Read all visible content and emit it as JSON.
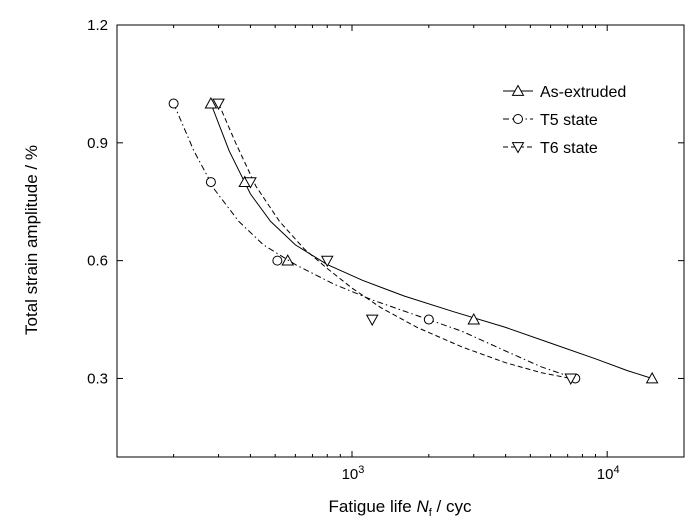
{
  "chart_data": {
    "type": "scatter",
    "xscale": "log",
    "xlim": [
      120,
      20000
    ],
    "ylim": [
      0.1,
      1.2
    ],
    "ylabel": "Total strain amplitude / %",
    "xlabel": {
      "prefix": "Fatigue life ",
      "italic": "N",
      "subscript": "f",
      "suffix": " / cyc"
    },
    "yticks": [
      0.3,
      0.6,
      0.9,
      1.2
    ],
    "ytick_labels": [
      "0.3",
      "0.6",
      "0.9",
      "1.2"
    ],
    "xticks": [
      1000,
      10000
    ],
    "xtick_labels": [
      {
        "base": "10",
        "exp": "3"
      },
      {
        "base": "10",
        "exp": "4"
      }
    ],
    "grid": false,
    "legend_position": "top-right",
    "series": [
      {
        "name": "As-extruded",
        "marker": "triangle-up",
        "line_style": "solid",
        "points": [
          [
            280,
            1.0
          ],
          [
            380,
            0.8
          ],
          [
            560,
            0.6
          ],
          [
            3000,
            0.45
          ],
          [
            15000,
            0.3
          ]
        ],
        "fit": [
          [
            280,
            1.0
          ],
          [
            330,
            0.88
          ],
          [
            400,
            0.77
          ],
          [
            480,
            0.7
          ],
          [
            600,
            0.64
          ],
          [
            800,
            0.59
          ],
          [
            1100,
            0.55
          ],
          [
            1600,
            0.51
          ],
          [
            2500,
            0.47
          ],
          [
            4000,
            0.43
          ],
          [
            6000,
            0.39
          ],
          [
            9000,
            0.35
          ],
          [
            12000,
            0.32
          ],
          [
            15000,
            0.3
          ]
        ]
      },
      {
        "name": "T5 state",
        "marker": "circle",
        "line_style": "dashdot",
        "points": [
          [
            200,
            1.0
          ],
          [
            280,
            0.8
          ],
          [
            510,
            0.6
          ],
          [
            2000,
            0.45
          ],
          [
            7500,
            0.3
          ]
        ],
        "fit": [
          [
            200,
            1.0
          ],
          [
            240,
            0.88
          ],
          [
            290,
            0.78
          ],
          [
            360,
            0.7
          ],
          [
            450,
            0.64
          ],
          [
            600,
            0.59
          ],
          [
            850,
            0.54
          ],
          [
            1200,
            0.5
          ],
          [
            1800,
            0.46
          ],
          [
            2700,
            0.42
          ],
          [
            4000,
            0.37
          ],
          [
            5500,
            0.33
          ],
          [
            7500,
            0.3
          ]
        ]
      },
      {
        "name": "T6 state",
        "marker": "triangle-down",
        "line_style": "dashed",
        "points": [
          [
            300,
            1.0
          ],
          [
            400,
            0.8
          ],
          [
            800,
            0.6
          ],
          [
            1200,
            0.45
          ],
          [
            7200,
            0.3
          ]
        ],
        "fit": [
          [
            300,
            1.0
          ],
          [
            350,
            0.9
          ],
          [
            420,
            0.79
          ],
          [
            520,
            0.7
          ],
          [
            650,
            0.63
          ],
          [
            800,
            0.58
          ],
          [
            1000,
            0.53
          ],
          [
            1300,
            0.48
          ],
          [
            1800,
            0.43
          ],
          [
            2700,
            0.38
          ],
          [
            4000,
            0.34
          ],
          [
            5500,
            0.315
          ],
          [
            7200,
            0.3
          ]
        ]
      }
    ]
  }
}
